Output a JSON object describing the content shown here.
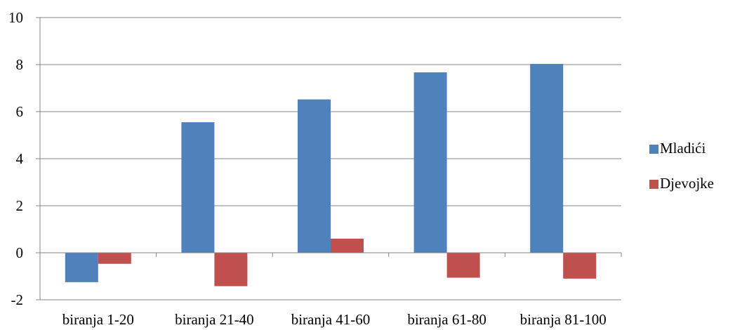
{
  "chart_data": {
    "type": "bar",
    "categories": [
      "biranja 1-20",
      "biranja 21-40",
      "biranja 41-60",
      "biranja 61-80",
      "biranja 81-100"
    ],
    "series": [
      {
        "name": "Mladići",
        "values": [
          -1.25,
          5.55,
          6.52,
          7.67,
          8.03
        ],
        "color": "#4F81BD"
      },
      {
        "name": "Djevojke",
        "values": [
          -0.47,
          -1.42,
          0.6,
          -1.06,
          -1.1
        ],
        "color": "#C0504D"
      }
    ],
    "y_ticks": [
      "-2",
      "0",
      "2",
      "4",
      "6",
      "8",
      "10"
    ],
    "ylim": [
      -2,
      10
    ],
    "grid": true,
    "legend_position": "right",
    "gridline_color": "#868686",
    "axis_color": "#868686"
  }
}
